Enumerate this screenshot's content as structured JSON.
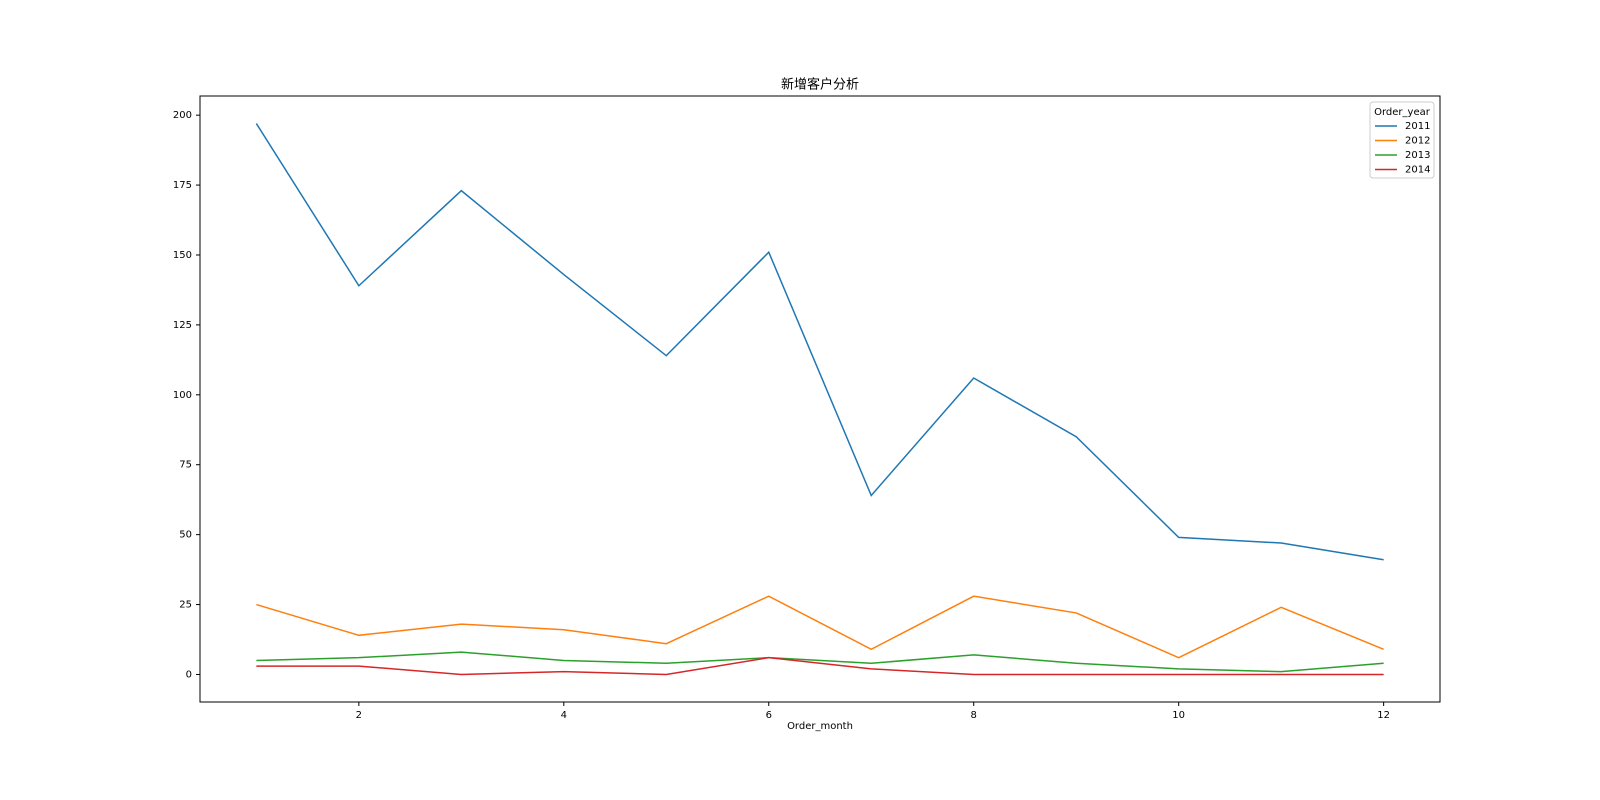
{
  "chart_data": {
    "type": "line",
    "title": "新增客户分析",
    "xlabel": "Order_month",
    "x": [
      1,
      2,
      3,
      4,
      5,
      6,
      7,
      8,
      9,
      10,
      11,
      12
    ],
    "series": [
      {
        "name": "2011",
        "color": "#1f77b4",
        "values": [
          197,
          139,
          173,
          143,
          114,
          151,
          64,
          106,
          85,
          49,
          47,
          41
        ]
      },
      {
        "name": "2012",
        "color": "#ff7f0e",
        "values": [
          25,
          14,
          18,
          16,
          11,
          28,
          9,
          28,
          22,
          6,
          24,
          9
        ]
      },
      {
        "name": "2013",
        "color": "#2ca02c",
        "values": [
          5,
          6,
          8,
          5,
          4,
          6,
          4,
          7,
          4,
          2,
          1,
          4
        ]
      },
      {
        "name": "2014",
        "color": "#d62728",
        "values": [
          3,
          3,
          0,
          1,
          0,
          6,
          2,
          0,
          0,
          0,
          0,
          0
        ]
      }
    ],
    "legend_title": "Order_year",
    "legend_position": "upper-right",
    "xlim": [
      0.45,
      12.55
    ],
    "xticks": [
      2,
      4,
      6,
      8,
      10,
      12
    ],
    "ylim": [
      -9.85,
      206.85
    ],
    "yticks": [
      0,
      25,
      50,
      75,
      100,
      125,
      150,
      175,
      200
    ]
  }
}
